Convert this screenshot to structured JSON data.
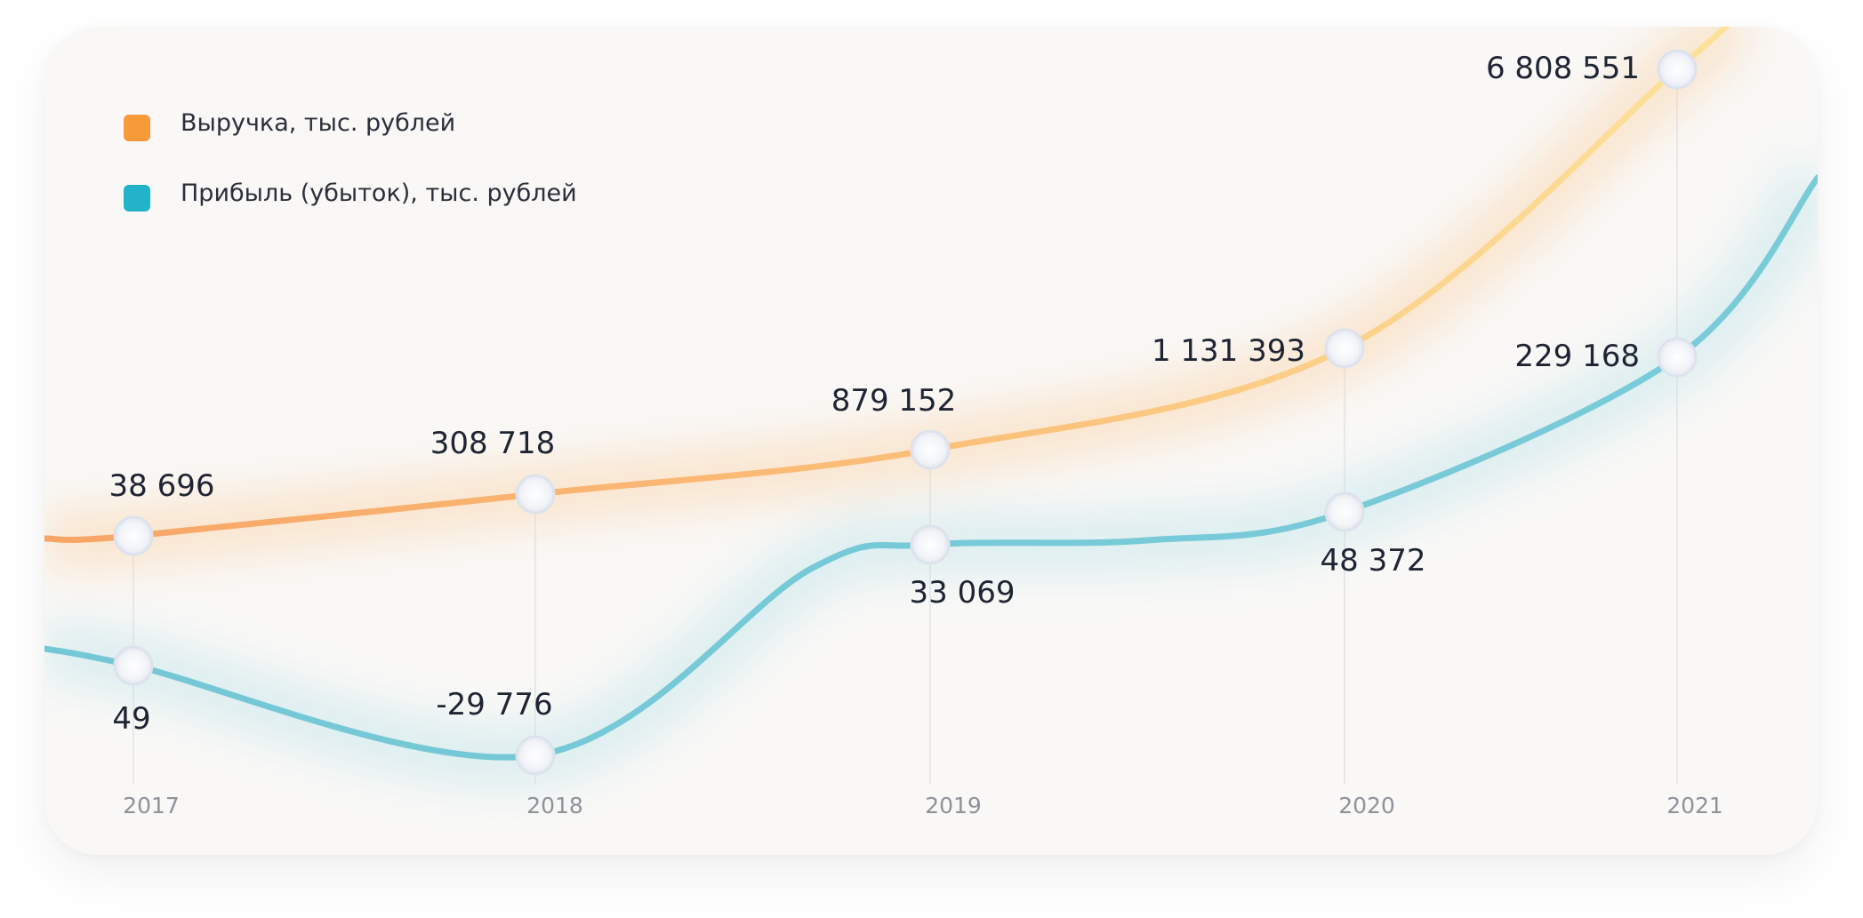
{
  "chart_data": {
    "type": "line",
    "categories": [
      "2017",
      "2018",
      "2019",
      "2020",
      "2021"
    ],
    "series": [
      {
        "name": "Выручка, тыс. рублей",
        "color": "#f7a25c",
        "values": [
          38696,
          308718,
          879152,
          1131393,
          6808551
        ],
        "labels": [
          "38 696",
          "308 718",
          "879 152",
          "1 131 393",
          "6 808 551"
        ]
      },
      {
        "name": "Прибыль (убыток), тыс. рублей",
        "color": "#74c8d6",
        "values": [
          49,
          -29776,
          33069,
          48372,
          229168
        ],
        "labels": [
          "49",
          "-29 776",
          "33 069",
          "48 372",
          "229 168"
        ]
      }
    ],
    "legend": "top-left",
    "grid": false,
    "y_scale": "non-linear"
  },
  "legend": {
    "swatch_colors": [
      "#f79a3a",
      "#22b3cb"
    ]
  }
}
